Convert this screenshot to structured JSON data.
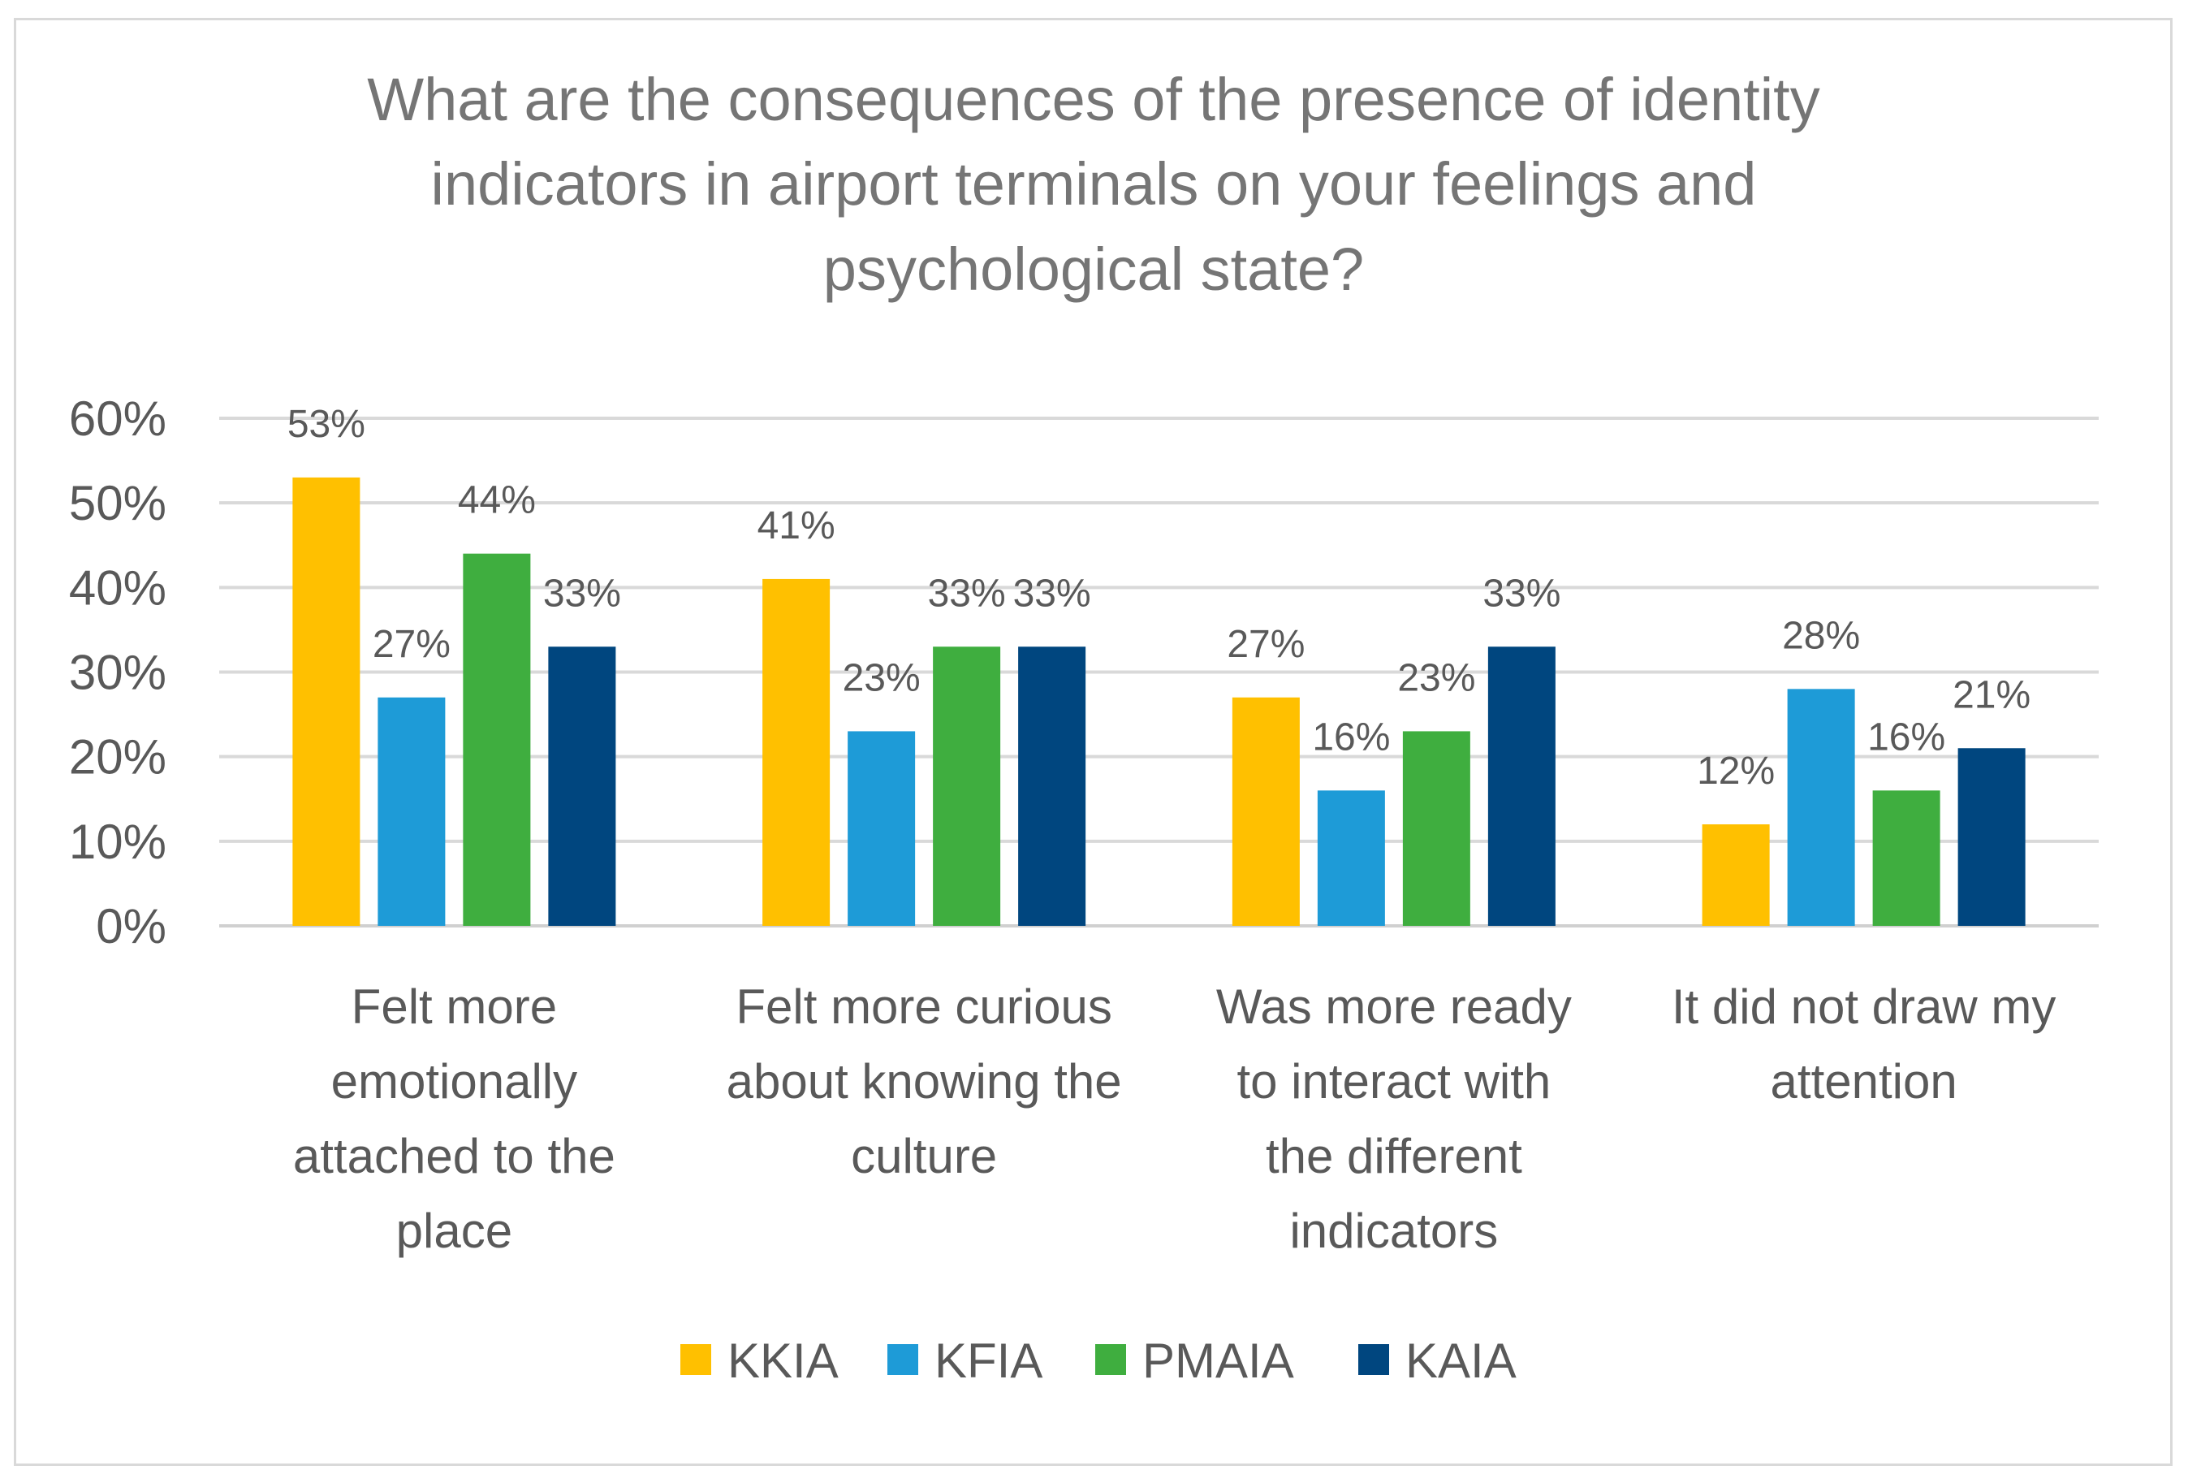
{
  "chart_data": {
    "type": "bar",
    "title": "What are the consequences of the presence of identity indicators in airport terminals on your feelings and psychological state?",
    "title_lines": [
      "What are the consequences of the presence of identity",
      "indicators in airport terminals on your feelings and",
      "psychological state?"
    ],
    "categories": [
      "Felt more emotionally attached to the place",
      "Felt more curious about knowing the culture",
      "Was more ready to interact with the different indicators",
      "It did not draw my attention"
    ],
    "category_lines": [
      [
        "Felt more",
        "emotionally",
        "attached to the",
        "place"
      ],
      [
        "Felt more curious",
        "about knowing the",
        "culture"
      ],
      [
        "Was more ready",
        "to interact with",
        "the different",
        "indicators"
      ],
      [
        "It did not draw my",
        "attention"
      ]
    ],
    "series": [
      {
        "name": "KKIA",
        "color": "#ffc000",
        "values": [
          53,
          41,
          27,
          12
        ],
        "labels": [
          "53%",
          "41%",
          "27%",
          "12%"
        ]
      },
      {
        "name": "KFIA",
        "color": "#1e9bd7",
        "values": [
          27,
          23,
          16,
          28
        ],
        "labels": [
          "27%",
          "23%",
          "16%",
          "28%"
        ]
      },
      {
        "name": "PMAIA",
        "color": "#3fae3f",
        "values": [
          44,
          33,
          23,
          16
        ],
        "labels": [
          "44%",
          "33%",
          "23%",
          "16%"
        ]
      },
      {
        "name": "KAIA",
        "color": "#00467f",
        "values": [
          33,
          33,
          33,
          21
        ],
        "labels": [
          "33%",
          "33%",
          "33%",
          "21%"
        ]
      }
    ],
    "ylim": [
      0,
      60
    ],
    "yticks": [
      0,
      10,
      20,
      30,
      40,
      50,
      60
    ],
    "ytick_labels": [
      "0%",
      "10%",
      "20%",
      "30%",
      "40%",
      "50%",
      "60%"
    ],
    "grid": true,
    "legend_position": "bottom",
    "xlabel": "",
    "ylabel": ""
  }
}
